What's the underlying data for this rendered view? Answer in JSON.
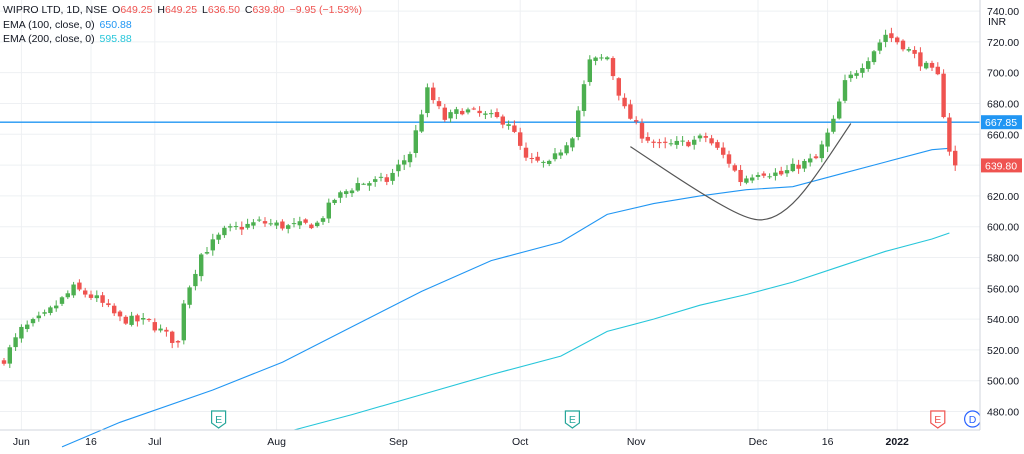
{
  "legend": {
    "title": "WIPRO LTD, 1D, NSE",
    "open_label": "O",
    "open": "649.25",
    "high_label": "H",
    "high": "649.25",
    "low_label": "L",
    "low": "636.50",
    "close_label": "C",
    "close": "639.80",
    "change": "−9.95 (−1.53%)",
    "ema100_label": "EMA (100, close, 0)",
    "ema100_value": "650.88",
    "ema200_label": "EMA (200, close, 0)",
    "ema200_value": "595.88"
  },
  "colors": {
    "up": "#26a69a",
    "up_fill": "#4caf50",
    "down": "#ef5350",
    "ema100": "#2196f3",
    "ema200": "#26c6da",
    "hline": "#2196f3",
    "curve": "#555555",
    "grid": "#eef0f3"
  },
  "chart_data": {
    "type": "candlestick",
    "currency": "INR",
    "y_axis": {
      "min": 468,
      "max": 742,
      "ticks": [
        480,
        500,
        520,
        540,
        560,
        580,
        600,
        620,
        640,
        660,
        680,
        700,
        720,
        740
      ],
      "tick_labels": [
        "480.00",
        "500.00",
        "520.00",
        "540.00",
        "560.00",
        "580.00",
        "600.00",
        "620.00",
        "640.00",
        "660.00",
        "680.00",
        "700.00",
        "720.00",
        "740.00"
      ]
    },
    "x_axis": {
      "labels": [
        "Jun",
        "16",
        "Jul",
        "Aug",
        "Sep",
        "Oct",
        "Nov",
        "Dec",
        "16",
        "2022"
      ],
      "label_bar_index": [
        3,
        15,
        26,
        47,
        68,
        89,
        109,
        130,
        142,
        154
      ],
      "bold_label": "2022"
    },
    "bars": 165,
    "anchors": [
      [
        0,
        514
      ],
      [
        3,
        533
      ],
      [
        7,
        542
      ],
      [
        12,
        560
      ],
      [
        16,
        553
      ],
      [
        20,
        540
      ],
      [
        25,
        538
      ],
      [
        30,
        524
      ],
      [
        31,
        552
      ],
      [
        34,
        582
      ],
      [
        38,
        597
      ],
      [
        44,
        603
      ],
      [
        49,
        600
      ],
      [
        54,
        602
      ],
      [
        57,
        618
      ],
      [
        61,
        628
      ],
      [
        66,
        630
      ],
      [
        70,
        648
      ],
      [
        73,
        688
      ],
      [
        76,
        670
      ],
      [
        79,
        676
      ],
      [
        83,
        672
      ],
      [
        87,
        668
      ],
      [
        90,
        643
      ],
      [
        94,
        640
      ],
      [
        98,
        660
      ],
      [
        101,
        707
      ],
      [
        104,
        710
      ],
      [
        107,
        676
      ],
      [
        110,
        660
      ],
      [
        113,
        652
      ],
      [
        117,
        654
      ],
      [
        121,
        658
      ],
      [
        125,
        642
      ],
      [
        127,
        630
      ],
      [
        130,
        636
      ],
      [
        134,
        634
      ],
      [
        137,
        640
      ],
      [
        140,
        644
      ],
      [
        143,
        668
      ],
      [
        145,
        693
      ],
      [
        149,
        710
      ],
      [
        152,
        725
      ],
      [
        155,
        718
      ],
      [
        158,
        707
      ],
      [
        161,
        697
      ],
      [
        163,
        650
      ],
      [
        164,
        639.8
      ]
    ],
    "close": 639.8,
    "ema100": {
      "name": "EMA (100, close, 0)",
      "value": 650.88,
      "points": [
        [
          10,
          457
        ],
        [
          20,
          473
        ],
        [
          36,
          494
        ],
        [
          48,
          512
        ],
        [
          60,
          535
        ],
        [
          72,
          558
        ],
        [
          84,
          578
        ],
        [
          96,
          590
        ],
        [
          104,
          608
        ],
        [
          112,
          615
        ],
        [
          120,
          620
        ],
        [
          128,
          624
        ],
        [
          136,
          626
        ],
        [
          144,
          634
        ],
        [
          152,
          642
        ],
        [
          160,
          650
        ],
        [
          163,
          650.88
        ]
      ]
    },
    "ema200": {
      "name": "EMA (200, close, 0)",
      "value": 595.88,
      "points": [
        [
          50,
          468
        ],
        [
          60,
          478
        ],
        [
          72,
          491
        ],
        [
          84,
          504
        ],
        [
          96,
          516
        ],
        [
          104,
          532
        ],
        [
          112,
          540
        ],
        [
          120,
          549
        ],
        [
          128,
          556
        ],
        [
          136,
          564
        ],
        [
          144,
          574
        ],
        [
          152,
          584
        ],
        [
          160,
          592
        ],
        [
          163,
          595.88
        ]
      ]
    },
    "horizontal_line": {
      "value": 667.85,
      "label": "667.85"
    },
    "price_tag": {
      "value": 639.8,
      "label": "639.80"
    },
    "cup_curve": {
      "points": [
        [
          108,
          652
        ],
        [
          120,
          622
        ],
        [
          128,
          605
        ],
        [
          132,
          604
        ],
        [
          136,
          614
        ],
        [
          140,
          633
        ],
        [
          146,
          667
        ]
      ]
    },
    "events": [
      {
        "bar_index": 37,
        "letter": "E",
        "style": "earnings-past"
      },
      {
        "bar_index": 98,
        "letter": "E",
        "style": "earnings-past"
      },
      {
        "bar_index": 161,
        "letter": "E",
        "style": "earnings-future"
      },
      {
        "bar_index": 167,
        "letter": "D",
        "style": "dividend"
      }
    ]
  }
}
